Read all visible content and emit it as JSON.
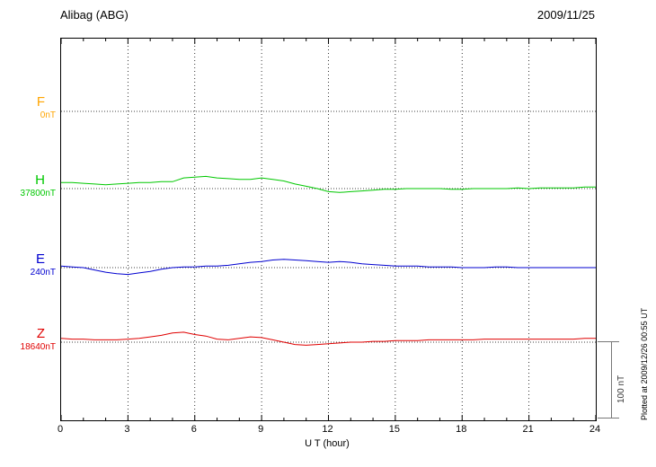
{
  "header": {
    "station": "Alibag (ABG)",
    "date": "2009/11/25"
  },
  "axis": {
    "xlabel": "U T (hour)",
    "ticks": [
      "0",
      "3",
      "6",
      "9",
      "12",
      "15",
      "18",
      "21",
      "24"
    ]
  },
  "scale_bar": {
    "label": "100 nT"
  },
  "plotted_note": "Plotted at 2009/12/26 00:55 UT",
  "chart_data": {
    "type": "line",
    "title": "Alibag (ABG) magnetogram 2009/11/25",
    "xlabel": "U T (hour)",
    "xlim": [
      0,
      24
    ],
    "x_step_hours": 0.5,
    "grid": "dotted vertical every 3 hours, dotted horizontal baseline per component",
    "scale_bar_nT": 100,
    "series": [
      {
        "name": "F",
        "baseline_label": "0nT",
        "color": "#FFA500",
        "values": null
      },
      {
        "name": "H",
        "baseline_label": "37800nT",
        "color": "#00C800",
        "values": [
          8,
          8,
          7,
          6,
          5,
          6,
          7,
          8,
          8,
          9,
          9,
          14,
          15,
          16,
          14,
          13,
          12,
          12,
          14,
          12,
          10,
          6,
          3,
          0,
          -4,
          -5,
          -4,
          -3,
          -2,
          -1,
          -1,
          0,
          0,
          0,
          0,
          -1,
          -1,
          0,
          0,
          0,
          0,
          1,
          0,
          1,
          1,
          1,
          1,
          2,
          2
        ]
      },
      {
        "name": "E",
        "baseline_label": "240nT",
        "color": "#0000D0",
        "values": [
          2,
          1,
          0,
          -3,
          -6,
          -8,
          -9,
          -7,
          -5,
          -2,
          0,
          1,
          1,
          2,
          2,
          3,
          5,
          7,
          8,
          10,
          11,
          10,
          9,
          8,
          7,
          8,
          7,
          5,
          4,
          3,
          2,
          2,
          2,
          1,
          1,
          1,
          0,
          0,
          0,
          1,
          1,
          0,
          0,
          0,
          0,
          0,
          0,
          0,
          0
        ]
      },
      {
        "name": "Z",
        "baseline_label": "18640nT",
        "color": "#E00000",
        "values": [
          5,
          4,
          4,
          3,
          3,
          3,
          4,
          5,
          7,
          9,
          12,
          13,
          10,
          8,
          4,
          3,
          5,
          7,
          6,
          3,
          0,
          -3,
          -4,
          -3,
          -2,
          -1,
          0,
          0,
          1,
          1,
          2,
          2,
          2,
          3,
          3,
          3,
          3,
          3,
          4,
          4,
          4,
          4,
          4,
          4,
          4,
          4,
          4,
          5,
          5
        ]
      }
    ]
  }
}
